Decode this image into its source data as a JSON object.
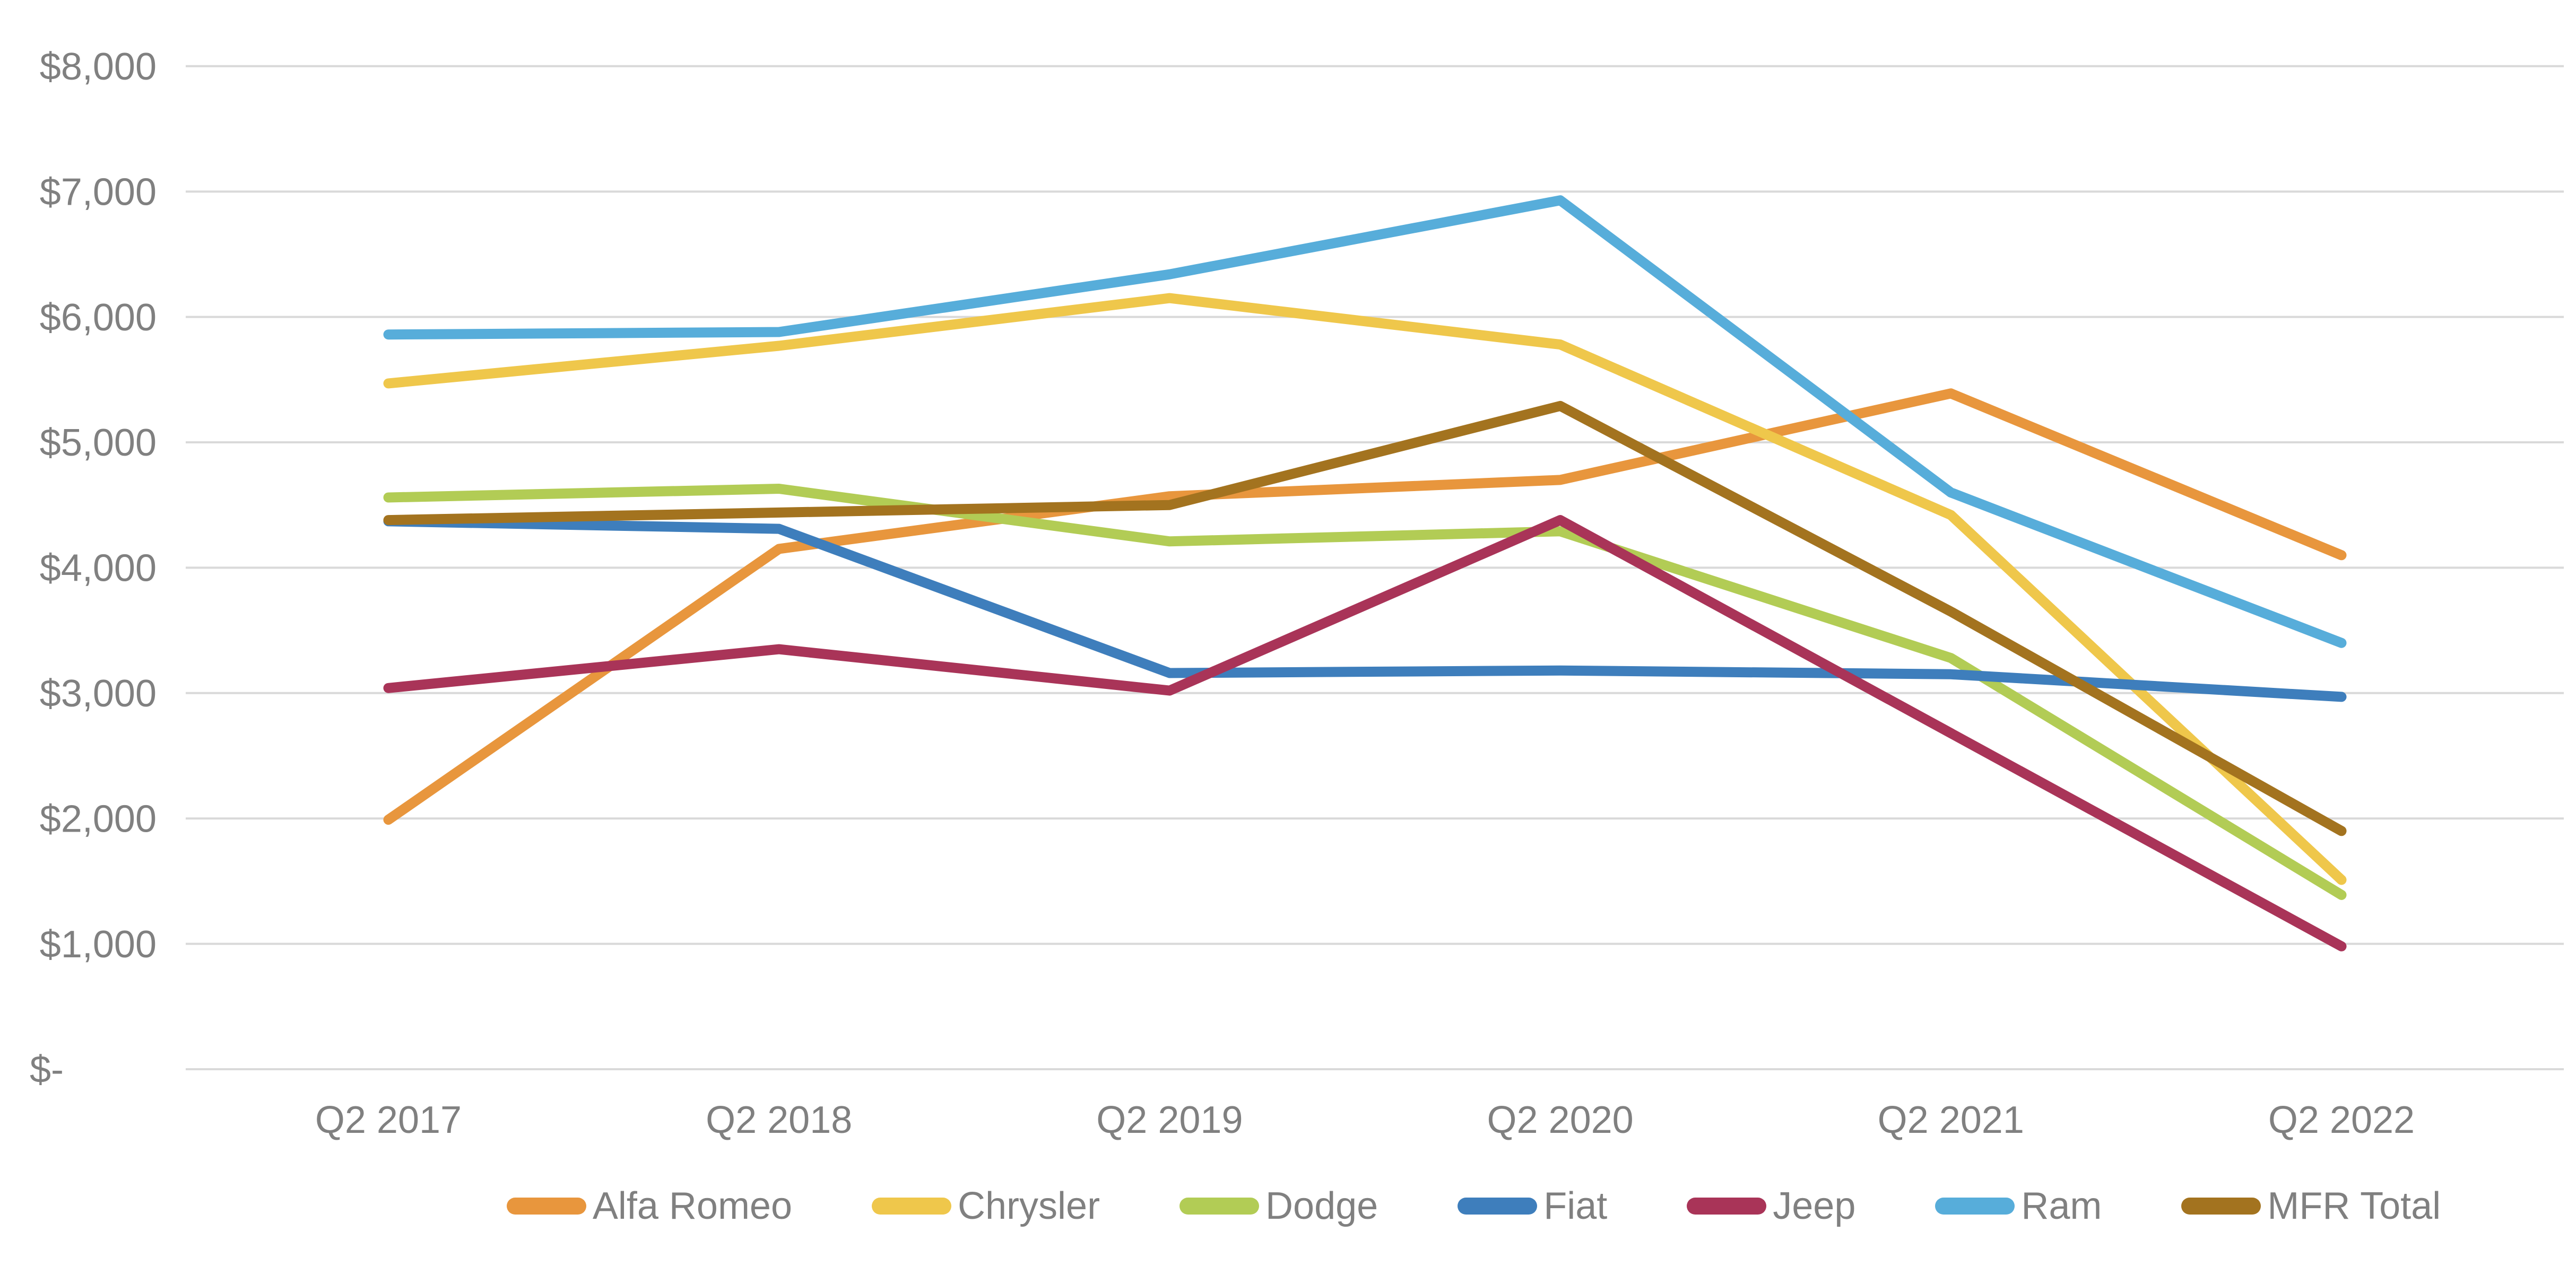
{
  "chart_data": {
    "type": "line",
    "title": "",
    "xlabel": "",
    "ylabel": "",
    "categories": [
      "Q2 2017",
      "Q2 2018",
      "Q2 2019",
      "Q2 2020",
      "Q2 2021",
      "Q2 2022"
    ],
    "series": [
      {
        "name": "Alfa Romeo",
        "color": "#E8963D",
        "values": [
          1990,
          4150,
          4570,
          4700,
          5390,
          4100
        ]
      },
      {
        "name": "Chrysler",
        "color": "#EFC74B",
        "values": [
          5470,
          5770,
          6150,
          5780,
          4420,
          1510
        ]
      },
      {
        "name": "Dodge",
        "color": "#B2CC55",
        "values": [
          4560,
          4630,
          4210,
          4290,
          3280,
          1390
        ]
      },
      {
        "name": "Fiat",
        "color": "#3E7EBC",
        "values": [
          4370,
          4310,
          3160,
          3180,
          3150,
          2970
        ]
      },
      {
        "name": "Jeep",
        "color": "#A93458",
        "values": [
          3040,
          3350,
          3020,
          4380,
          2680,
          980
        ]
      },
      {
        "name": "Ram",
        "color": "#57ADDA",
        "values": [
          5860,
          5880,
          6340,
          6930,
          4600,
          3400
        ]
      },
      {
        "name": "MFR Total",
        "color": "#A3731F",
        "values": [
          4380,
          4440,
          4500,
          5290,
          3650,
          1900
        ]
      }
    ],
    "ylim": [
      0,
      8000
    ],
    "ytick_step": 1000,
    "ytick_labels": [
      "$-",
      "$1,000",
      "$2,000",
      "$3,000",
      "$4,000",
      "$5,000",
      "$6,000",
      "$7,000",
      "$8,000"
    ],
    "grid": "horizontal-only",
    "legend_position": "bottom",
    "axis_text_color": "#808080",
    "gridline_color": "#D9D9D9"
  }
}
